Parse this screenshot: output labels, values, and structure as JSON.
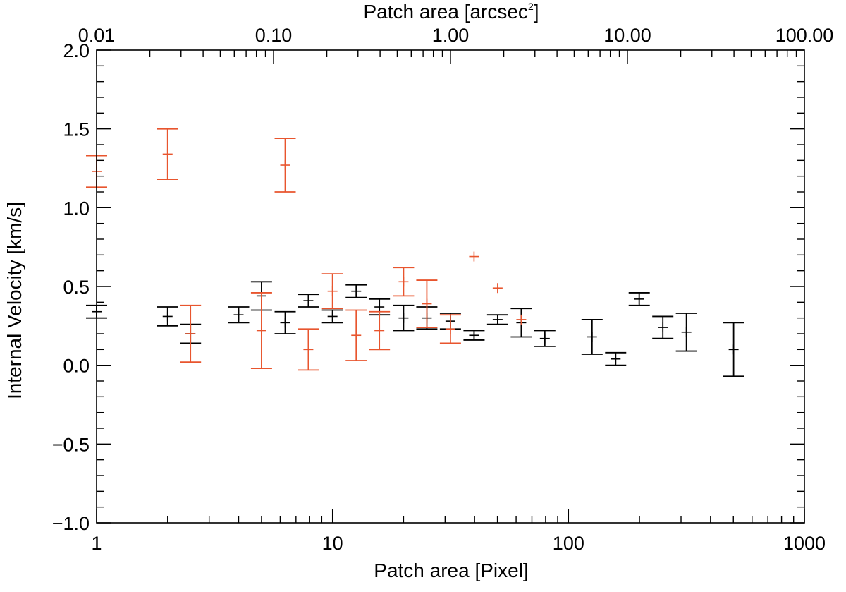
{
  "chart_data": {
    "type": "scatter",
    "title": "",
    "xlabel": "Patch area [Pixel]",
    "ylabel": "Internal Velocity [km/s]",
    "top_xlabel": "Patch area [arcsec",
    "top_xlabel_sup": "2",
    "top_xlabel_close": "]",
    "xscale": "log",
    "xlim": [
      1,
      1000
    ],
    "ylim": [
      -1.0,
      2.0
    ],
    "top_xlim": [
      0.01,
      100.0
    ],
    "x_ticks": [
      {
        "value": 1,
        "label": "1"
      },
      {
        "value": 10,
        "label": "10"
      },
      {
        "value": 100,
        "label": "100"
      },
      {
        "value": 1000,
        "label": "1000"
      }
    ],
    "y_ticks": [
      {
        "value": -1.0,
        "label": "−1.0"
      },
      {
        "value": -0.5,
        "label": "−0.5"
      },
      {
        "value": 0.0,
        "label": "0.0"
      },
      {
        "value": 0.5,
        "label": "0.5"
      },
      {
        "value": 1.0,
        "label": "1.0"
      },
      {
        "value": 1.5,
        "label": "1.5"
      },
      {
        "value": 2.0,
        "label": "2.0"
      }
    ],
    "top_ticks": [
      {
        "value": 0.01,
        "label": "0.01"
      },
      {
        "value": 0.1,
        "label": "0.10"
      },
      {
        "value": 1.0,
        "label": "1.00"
      },
      {
        "value": 10.0,
        "label": "10.00"
      },
      {
        "value": 100.0,
        "label": "100.00"
      }
    ],
    "colors": {
      "black_series": "#000000",
      "red_series": "#e8552e"
    },
    "series": [
      {
        "name": "black",
        "color": "#000000",
        "points": [
          {
            "x": 1.0,
            "y": 0.34,
            "err": 0.04
          },
          {
            "x": 2.0,
            "y": 0.31,
            "err": 0.06
          },
          {
            "x": 2.5,
            "y": 0.2,
            "err": 0.06
          },
          {
            "x": 4.0,
            "y": 0.32,
            "err": 0.05
          },
          {
            "x": 5.0,
            "y": 0.44,
            "err": 0.09
          },
          {
            "x": 6.3,
            "y": 0.27,
            "err": 0.07
          },
          {
            "x": 7.9,
            "y": 0.41,
            "err": 0.04
          },
          {
            "x": 10.0,
            "y": 0.31,
            "err": 0.04
          },
          {
            "x": 12.6,
            "y": 0.47,
            "err": 0.04
          },
          {
            "x": 15.8,
            "y": 0.37,
            "err": 0.05
          },
          {
            "x": 20.0,
            "y": 0.3,
            "err": 0.08
          },
          {
            "x": 25.1,
            "y": 0.3,
            "err": 0.07
          },
          {
            "x": 31.6,
            "y": 0.28,
            "err": 0.05
          },
          {
            "x": 39.8,
            "y": 0.19,
            "err": 0.03
          },
          {
            "x": 50.1,
            "y": 0.29,
            "err": 0.03
          },
          {
            "x": 63.1,
            "y": 0.27,
            "err": 0.09
          },
          {
            "x": 79.4,
            "y": 0.17,
            "err": 0.05
          },
          {
            "x": 125.9,
            "y": 0.18,
            "err": 0.11
          },
          {
            "x": 158.5,
            "y": 0.04,
            "err": 0.04
          },
          {
            "x": 199.5,
            "y": 0.42,
            "err": 0.04
          },
          {
            "x": 251.2,
            "y": 0.24,
            "err": 0.07
          },
          {
            "x": 316.2,
            "y": 0.21,
            "err": 0.12
          },
          {
            "x": 501.2,
            "y": 0.1,
            "err": 0.17
          }
        ]
      },
      {
        "name": "red",
        "color": "#e8552e",
        "points": [
          {
            "x": 1.0,
            "y": 1.23,
            "err": 0.1
          },
          {
            "x": 2.0,
            "y": 1.34,
            "err": 0.16
          },
          {
            "x": 2.5,
            "y": 0.2,
            "err": 0.18
          },
          {
            "x": 5.0,
            "y": 0.22,
            "err": 0.24
          },
          {
            "x": 6.3,
            "y": 1.27,
            "err": 0.17
          },
          {
            "x": 7.9,
            "y": 0.1,
            "err": 0.13
          },
          {
            "x": 10.0,
            "y": 0.47,
            "err": 0.11
          },
          {
            "x": 12.6,
            "y": 0.19,
            "err": 0.16
          },
          {
            "x": 15.8,
            "y": 0.22,
            "err": 0.12
          },
          {
            "x": 20.0,
            "y": 0.53,
            "err": 0.09
          },
          {
            "x": 25.1,
            "y": 0.39,
            "err": 0.15
          },
          {
            "x": 31.6,
            "y": 0.23,
            "err": 0.09
          },
          {
            "x": 39.8,
            "y": 0.69,
            "err": 0.0
          },
          {
            "x": 50.1,
            "y": 0.49,
            "err": 0.0
          },
          {
            "x": 63.1,
            "y": 0.29,
            "err": 0.0
          }
        ]
      }
    ]
  }
}
